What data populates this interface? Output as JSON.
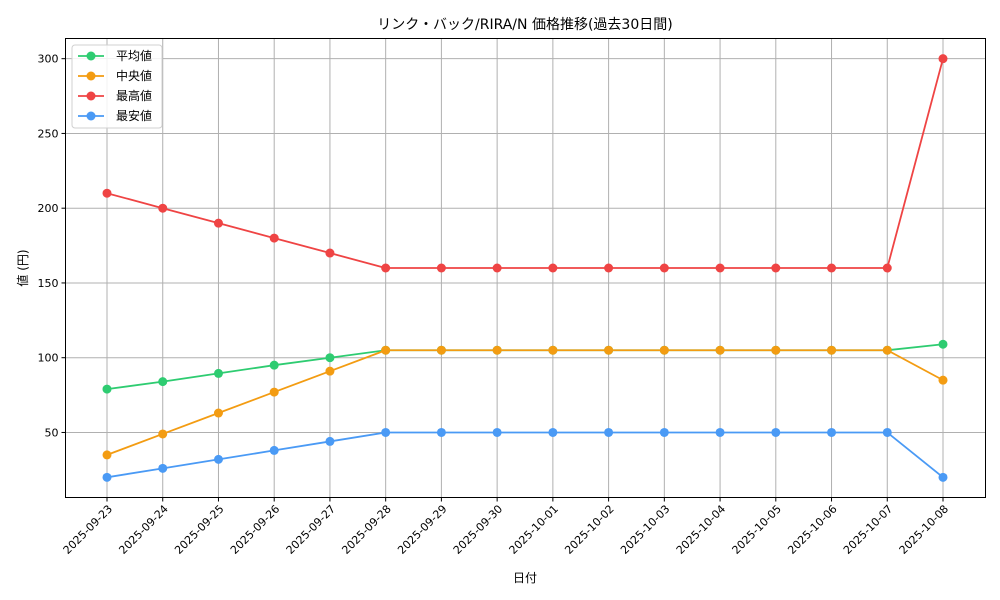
{
  "chart_data": {
    "type": "line",
    "title": "リンク・バック/RIRA/N 価格推移(過去30日間)",
    "xlabel": "日付",
    "ylabel": "値 (円)",
    "categories": [
      "2025-09-23",
      "2025-09-24",
      "2025-09-25",
      "2025-09-26",
      "2025-09-27",
      "2025-09-28",
      "2025-09-29",
      "2025-09-30",
      "2025-10-01",
      "2025-10-02",
      "2025-10-03",
      "2025-10-04",
      "2025-10-05",
      "2025-10-06",
      "2025-10-07",
      "2025-10-08"
    ],
    "series": [
      {
        "name": "平均値",
        "color": "#2ecc71",
        "values": [
          79,
          84,
          89.5,
          95,
          100,
          105,
          105,
          105,
          105,
          105,
          105,
          105,
          105,
          105,
          105,
          109
        ]
      },
      {
        "name": "中央値",
        "color": "#f39c12",
        "values": [
          35,
          49,
          63,
          77,
          91,
          105,
          105,
          105,
          105,
          105,
          105,
          105,
          105,
          105,
          105,
          85
        ]
      },
      {
        "name": "最高値",
        "color": "#ef4444",
        "values": [
          210,
          200,
          190,
          180,
          170,
          160,
          160,
          160,
          160,
          160,
          160,
          160,
          160,
          160,
          160,
          300
        ]
      },
      {
        "name": "最安値",
        "color": "#4a9af5",
        "values": [
          20,
          26,
          32,
          38,
          44,
          50,
          50,
          50,
          50,
          50,
          50,
          50,
          50,
          50,
          50,
          20
        ]
      }
    ],
    "yticks": [
      50,
      100,
      150,
      200,
      250,
      300
    ],
    "ylim": [
      6.5,
      313.5
    ],
    "grid": true,
    "legend_position": "upper left"
  }
}
